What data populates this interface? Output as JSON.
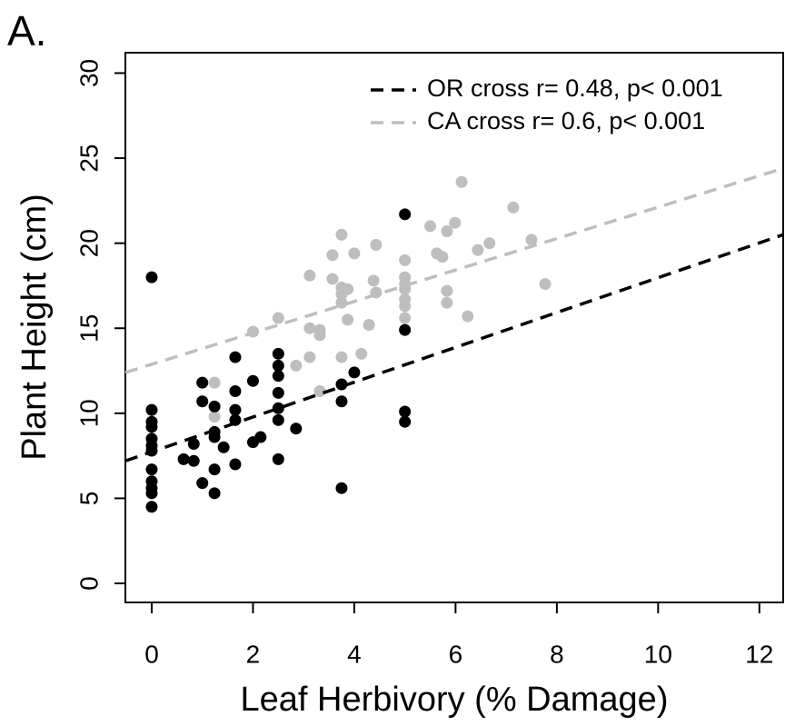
{
  "chart_data": {
    "type": "scatter",
    "panel_label": "A.",
    "xlabel": "Leaf Herbivory (% Damage)",
    "ylabel": "Plant Height (cm)",
    "xlim": [
      -0.52,
      12.47
    ],
    "ylim": [
      -1.12,
      31.2
    ],
    "xticks": [
      0,
      2,
      4,
      6,
      8,
      10,
      12
    ],
    "yticks": [
      0,
      5,
      10,
      15,
      20,
      25,
      30
    ],
    "legend": "topright",
    "series": [
      {
        "name": "CA cross r= 0.6, p< 0.001",
        "color": "#bebebe",
        "x": [
          1.24,
          1.24,
          2.0,
          2.5,
          2.85,
          3.12,
          3.12,
          3.12,
          3.32,
          3.32,
          3.32,
          3.57,
          3.57,
          3.75,
          3.75,
          3.75,
          3.75,
          3.75,
          3.87,
          3.87,
          4.0,
          4.14,
          4.29,
          4.38,
          4.43,
          4.43,
          5.0,
          5.0,
          5.0,
          5.0,
          5.0,
          5.0,
          5.0,
          5.5,
          5.63,
          5.74,
          5.83,
          5.83,
          5.83,
          5.99,
          6.12,
          6.24,
          6.44,
          6.67,
          7.14,
          7.5,
          7.77
        ],
        "values": [
          11.8,
          9.8,
          14.8,
          15.6,
          12.8,
          18.1,
          15.0,
          13.3,
          14.9,
          14.6,
          11.3,
          19.3,
          17.9,
          20.5,
          17.4,
          17.0,
          16.5,
          13.3,
          17.3,
          15.5,
          19.4,
          13.5,
          15.2,
          17.8,
          19.9,
          17.1,
          19.0,
          18.0,
          17.6,
          17.3,
          16.7,
          16.3,
          15.6,
          21.0,
          19.4,
          19.2,
          20.7,
          17.2,
          16.5,
          21.2,
          23.6,
          15.7,
          19.6,
          20.0,
          22.1,
          20.2,
          17.6
        ],
        "fit": {
          "x": [
            -0.52,
            12.47
          ],
          "y": [
            12.4,
            24.4
          ]
        }
      },
      {
        "name": "OR cross r= 0.48, p< 0.001",
        "color": "#000000",
        "x": [
          0,
          0,
          0,
          0,
          0,
          0,
          0,
          0,
          0,
          0,
          0,
          0,
          0.63,
          0.83,
          0.83,
          1.0,
          1.0,
          1.0,
          1.24,
          1.24,
          1.24,
          1.24,
          1.24,
          1.42,
          1.65,
          1.65,
          1.65,
          1.65,
          1.65,
          2.0,
          2.0,
          2.15,
          2.5,
          2.5,
          2.5,
          2.5,
          2.5,
          2.5,
          2.5,
          2.85,
          3.75,
          3.75,
          3.75,
          4.0,
          5.0,
          5.0,
          5.0,
          5.0
        ],
        "values": [
          18.0,
          10.2,
          9.5,
          9.2,
          8.5,
          8.1,
          7.8,
          6.7,
          6.0,
          5.6,
          5.3,
          4.5,
          7.3,
          8.2,
          7.2,
          11.8,
          10.7,
          5.9,
          10.4,
          8.9,
          8.6,
          6.7,
          5.3,
          8.0,
          13.3,
          11.3,
          10.2,
          9.6,
          7.0,
          11.9,
          8.3,
          8.6,
          13.5,
          12.8,
          12.2,
          11.2,
          10.3,
          9.6,
          7.3,
          9.1,
          11.7,
          10.7,
          5.6,
          12.4,
          21.7,
          14.9,
          10.1,
          9.5
        ],
        "fit": {
          "x": [
            -0.52,
            12.47
          ],
          "y": [
            7.2,
            20.5
          ]
        }
      }
    ]
  }
}
